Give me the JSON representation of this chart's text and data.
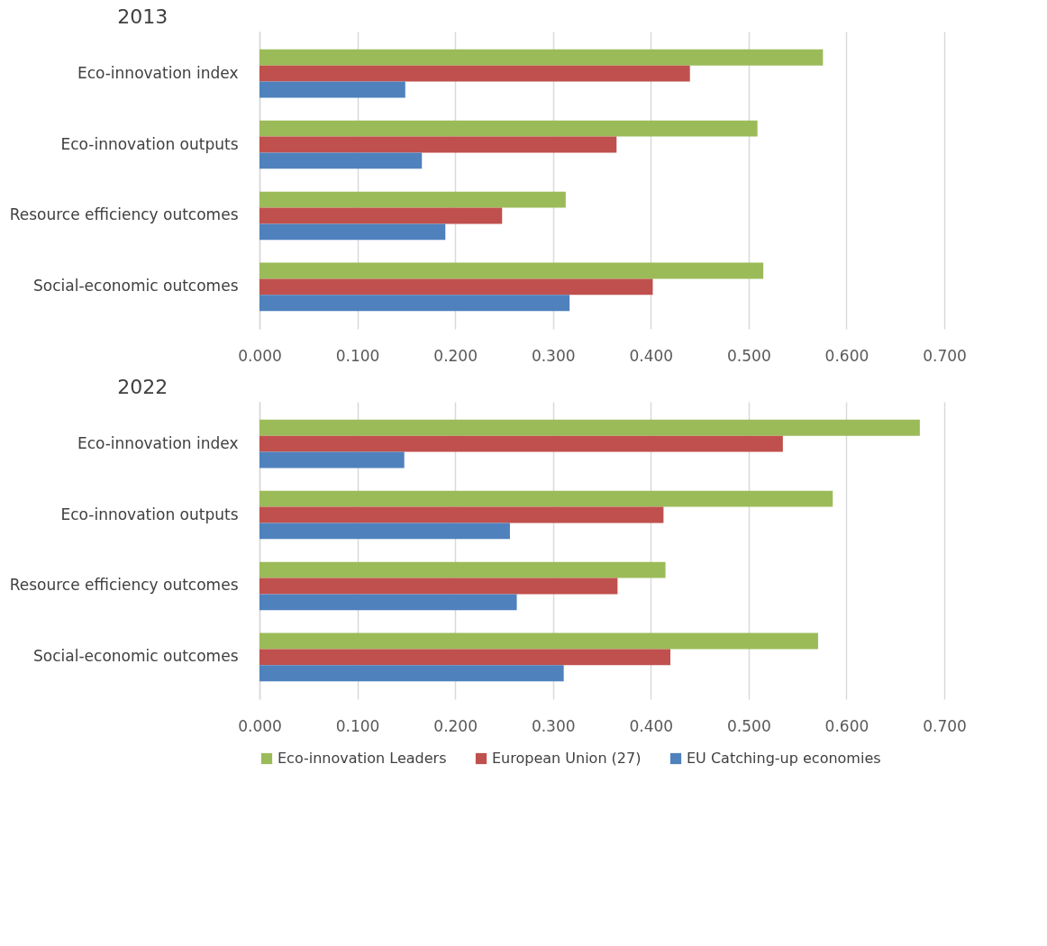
{
  "chart_data": [
    {
      "type": "bar",
      "orientation": "horizontal",
      "title": "2013",
      "categories": [
        "Eco-innovation index",
        "Eco-innovation outputs",
        "Resource efficiency outcomes",
        "Social-economic outcomes"
      ],
      "series": [
        {
          "color": "#9bbb59",
          "values": [
            0.576,
            0.509,
            0.313,
            0.515
          ]
        },
        {
          "color": "#c0504d",
          "values": [
            0.44,
            0.365,
            0.248,
            0.402
          ]
        },
        {
          "color": "#4f81bd",
          "values": [
            0.149,
            0.166,
            0.19,
            0.317
          ]
        }
      ],
      "xlim": [
        0,
        0.7
      ],
      "xticks": [
        {
          "value": 0,
          "label": "0.000"
        },
        {
          "value": 0.1,
          "label": "0.100"
        },
        {
          "value": 0.2,
          "label": "0.200"
        },
        {
          "value": 0.3,
          "label": "0.300"
        },
        {
          "value": 0.4,
          "label": "0.400"
        },
        {
          "value": 0.5,
          "label": "0.500"
        },
        {
          "value": 0.6,
          "label": "0.600"
        },
        {
          "value": 0.7,
          "label": "0.700"
        }
      ],
      "grid": "x",
      "legend": false
    },
    {
      "type": "bar",
      "orientation": "horizontal",
      "title": "2022",
      "categories": [
        "Eco-innovation index",
        "Eco-innovation outputs",
        "Resource efficiency outcomes",
        "Social-economic outcomes"
      ],
      "series": [
        {
          "name": "Eco-innovation Leaders",
          "color": "#9bbb59",
          "values": [
            0.675,
            0.586,
            0.415,
            0.571
          ]
        },
        {
          "name": "European Union (27)",
          "color": "#c0504d",
          "values": [
            0.535,
            0.413,
            0.366,
            0.42
          ]
        },
        {
          "name": "EU Catching-up economies",
          "color": "#4f81bd",
          "values": [
            0.148,
            0.256,
            0.263,
            0.311
          ]
        }
      ],
      "xlim": [
        0,
        0.7
      ],
      "xticks": [
        {
          "value": 0,
          "label": "0.000"
        },
        {
          "value": 0.1,
          "label": "0.100"
        },
        {
          "value": 0.2,
          "label": "0.200"
        },
        {
          "value": 0.3,
          "label": "0.300"
        },
        {
          "value": 0.4,
          "label": "0.400"
        },
        {
          "value": 0.5,
          "label": "0.500"
        },
        {
          "value": 0.6,
          "label": "0.600"
        },
        {
          "value": 0.7,
          "label": "0.700"
        }
      ],
      "grid": "x",
      "legend": "bottom"
    }
  ]
}
